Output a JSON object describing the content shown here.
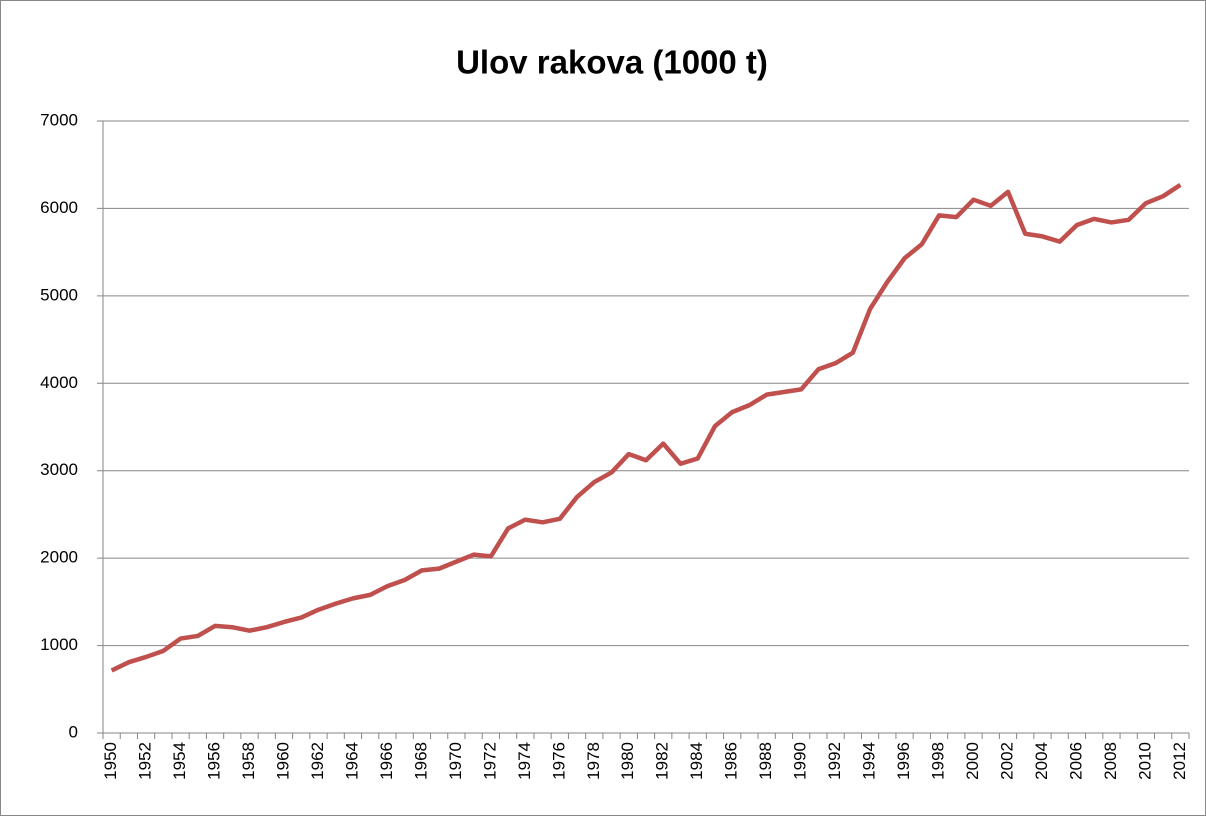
{
  "chart_data": {
    "type": "line",
    "title": "Ulov rakova (1000 t)",
    "categories": [
      "1950",
      null,
      "1952",
      null,
      "1954",
      null,
      "1956",
      null,
      "1958",
      null,
      "1960",
      null,
      "1962",
      null,
      "1964",
      null,
      "1966",
      null,
      "1968",
      null,
      "1970",
      null,
      "1972",
      null,
      "1974",
      null,
      "1976",
      null,
      "1978",
      null,
      "1980",
      null,
      "1982",
      null,
      "1984",
      null,
      "1986",
      null,
      "1988",
      null,
      "1990",
      null,
      "1992",
      null,
      "1994",
      null,
      "1996",
      null,
      "1998",
      null,
      "2000",
      null,
      "2002",
      null,
      "2004",
      null,
      "2006",
      null,
      "2008",
      null,
      "2010",
      null,
      "2012"
    ],
    "series": [
      {
        "name": "Ulov",
        "color": "#c0504d",
        "values": [
          715,
          810,
          870,
          940,
          1080,
          1110,
          1225,
          1210,
          1170,
          1210,
          1270,
          1320,
          1410,
          1480,
          1540,
          1580,
          1680,
          1750,
          1860,
          1880,
          1960,
          2040,
          2020,
          2340,
          2440,
          2410,
          2450,
          2700,
          2870,
          2980,
          3190,
          3120,
          3310,
          3080,
          3140,
          3510,
          3670,
          3750,
          3870,
          3900,
          3930,
          4160,
          4230,
          4350,
          4850,
          5160,
          5430,
          5590,
          5920,
          5900,
          6100,
          6030,
          6190,
          5710,
          5680,
          5620,
          5810,
          5880,
          5840,
          5870,
          6060,
          6140,
          6270
        ]
      }
    ],
    "ylim": [
      0,
      7000
    ],
    "yticks": [
      0,
      1000,
      2000,
      3000,
      4000,
      5000,
      6000,
      7000
    ],
    "grid": true
  }
}
